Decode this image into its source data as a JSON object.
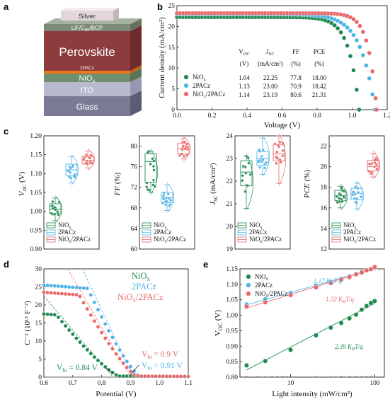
{
  "panels": {
    "a": "a",
    "b": "b",
    "c": "c",
    "d": "d",
    "e": "e"
  },
  "colors": {
    "green": "#1e8a50",
    "blue": "#4fb3e6",
    "red": "#e8686a"
  },
  "device": {
    "layers": [
      "Silver",
      "LiF/C60/BCP",
      "Perovskite",
      "2PACz",
      "NiOx",
      "ITO",
      "Glass"
    ],
    "labels": {
      "silver": "Silver",
      "lif": "LiF/C",
      "lif_sub": "60",
      "lif_rest": "/BCP",
      "perovskite": "Perovskite",
      "pacz": "2PACz",
      "niox": "NiO",
      "niox_sub": "x",
      "ito": "ITO",
      "glass": "Glass"
    }
  },
  "chart_data": [
    {
      "panel": "b",
      "type": "line",
      "xlabel": "Voltage (V)",
      "ylabel": "Current density (mA/cm²)",
      "xlim": [
        0.0,
        1.2
      ],
      "ylim": [
        0,
        25
      ],
      "xticks": [
        "0.0",
        "0.2",
        "0.4",
        "0.6",
        "0.8",
        "1.0",
        "1.2"
      ],
      "yticks": [
        "0",
        "5",
        "10",
        "15",
        "20",
        "25"
      ],
      "legend": [
        "NiOx",
        "2PACz",
        "NiOx/2PACz"
      ],
      "series": [
        {
          "name": "NiOx",
          "jsc": 22.25,
          "voc": 1.04
        },
        {
          "name": "2PACz",
          "jsc": 23.0,
          "voc": 1.13
        },
        {
          "name": "NiOx/2PACz",
          "jsc": 23.19,
          "voc": 1.14
        }
      ],
      "table": {
        "headers": [
          "VOC",
          "JSC",
          "FF",
          "PCE"
        ],
        "units": [
          "(V)",
          "(mA/cm²)",
          "(%)",
          "(%)"
        ],
        "rows": [
          [
            "1.04",
            "22.25",
            "77.8",
            "18.00"
          ],
          [
            "1.13",
            "23.00",
            "70.9",
            "18.42"
          ],
          [
            "1.14",
            "23.19",
            "80.6",
            "21.31"
          ]
        ]
      }
    },
    {
      "panel": "c",
      "type": "box",
      "groups": [
        "NiOx",
        "2PACz",
        "NiOx/2PACz"
      ],
      "subplots": [
        {
          "ylabel": "VOC (V)",
          "ylim": [
            0.9,
            1.2
          ],
          "yticks": [
            "0.90",
            "0.95",
            "1.00",
            "1.05",
            "1.10",
            "1.15",
            "1.20"
          ],
          "boxes": [
            [
              0.975,
              0.995,
              1.005,
              1.02,
              1.035
            ],
            [
              1.075,
              1.095,
              1.11,
              1.125,
              1.145
            ],
            [
              1.115,
              1.125,
              1.135,
              1.145,
              1.16
            ]
          ]
        },
        {
          "ylabel": "FF (%)",
          "ylim": [
            60,
            82
          ],
          "yticks": [
            "60",
            "64",
            "68",
            "72",
            "76",
            "80"
          ],
          "boxes": [
            [
              71,
              73,
              77,
              78.5,
              79
            ],
            [
              67.5,
              69,
              70,
              71,
              72.5
            ],
            [
              77.5,
              78.5,
              79.5,
              80.5,
              81.5
            ]
          ]
        },
        {
          "ylabel": "JSC (mA/cm²)",
          "ylim": [
            19,
            24
          ],
          "yticks": [
            "19",
            "20",
            "21",
            "22",
            "23",
            "24"
          ],
          "boxes": [
            [
              20.8,
              21.8,
              22.4,
              22.9,
              23.1
            ],
            [
              22.3,
              22.7,
              23.0,
              23.3,
              23.9
            ],
            [
              21.9,
              22.9,
              23.2,
              23.6,
              24.0
            ]
          ]
        },
        {
          "ylabel": "PCE (%)",
          "ylim": [
            12,
            23
          ],
          "yticks": [
            "12",
            "14",
            "16",
            "18",
            "20",
            "22"
          ],
          "boxes": [
            [
              16.0,
              16.7,
              17.2,
              17.7,
              18.1
            ],
            [
              15.9,
              16.8,
              17.4,
              17.9,
              18.4
            ],
            [
              19.0,
              19.6,
              20.0,
              20.6,
              21.3
            ]
          ]
        }
      ]
    },
    {
      "panel": "d",
      "type": "scatter",
      "xlabel": "Potential (V)",
      "ylabel": "C⁻² (10¹⁵ F⁻²)",
      "xlim": [
        0.6,
        1.1
      ],
      "ylim": [
        0,
        30
      ],
      "xticks": [
        "0.6",
        "0.7",
        "0.8",
        "0.9",
        "1.0",
        "1.1"
      ],
      "yticks": [
        "0",
        "5",
        "10",
        "15",
        "20",
        "25",
        "30"
      ],
      "legend": [
        "NiOx",
        "2PACz",
        "NiOx/2PACz"
      ],
      "series": [
        {
          "name": "NiOx",
          "plateau": 17.5,
          "vbi": 0.84
        },
        {
          "name": "2PACz",
          "plateau": 25.5,
          "vbi": 0.91
        },
        {
          "name": "NiOx/2PACz",
          "plateau": 23.5,
          "vbi": 0.9
        }
      ],
      "annotations": {
        "vbi_niox": "V",
        "vbi_niox_sub": "bi",
        "vbi_niox_val": " = 0.84 V",
        "vbi_2pacz": "V",
        "vbi_2pacz_sub": "bi",
        "vbi_2pacz_val": " = 0.91 V",
        "vbi_both": "V",
        "vbi_both_sub": "bi",
        "vbi_both_val": " = 0.9 V"
      }
    },
    {
      "panel": "e",
      "type": "scatter",
      "xscale": "log",
      "xlabel": "Light intensity (mW/cm²)",
      "ylabel": "VOC (V)",
      "xlim": [
        2.5,
        130
      ],
      "ylim": [
        0.8,
        1.15
      ],
      "xticks": [
        "10",
        "100"
      ],
      "yticks": [
        "0.80",
        "0.85",
        "0.90",
        "0.95",
        "1.00",
        "1.05",
        "1.10",
        "1.15"
      ],
      "legend": [
        "NiOx",
        "2PACz",
        "NiOx/2PACz"
      ],
      "x": [
        3,
        5,
        10,
        20,
        30,
        40,
        50,
        60,
        70,
        80,
        90,
        100
      ],
      "series": [
        {
          "name": "NiOx",
          "values": [
            0.838,
            0.852,
            0.888,
            0.935,
            0.96,
            0.975,
            0.99,
            1.002,
            1.018,
            1.03,
            1.04,
            1.046
          ]
        },
        {
          "name": "2PACz",
          "values": [
            1.035,
            1.052,
            1.072,
            1.096,
            1.108,
            1.118,
            1.126,
            1.134,
            1.14,
            1.146,
            1.149,
            1.153
          ]
        },
        {
          "name": "NiOx/2PACz",
          "values": [
            1.028,
            1.042,
            1.065,
            1.09,
            1.104,
            1.115,
            1.123,
            1.132,
            1.138,
            1.145,
            1.149,
            1.156
          ]
        }
      ],
      "annotations": {
        "blue_fit": "1.17 K",
        "blue_fit_sub": "B",
        "blue_fit_rest": "T/q",
        "red_fit": "1.32 K",
        "red_fit_sub": "B",
        "red_fit_rest": "T/q",
        "green_fit": "2.39 K",
        "green_fit_sub": "B",
        "green_fit_rest": "T/q"
      }
    }
  ]
}
